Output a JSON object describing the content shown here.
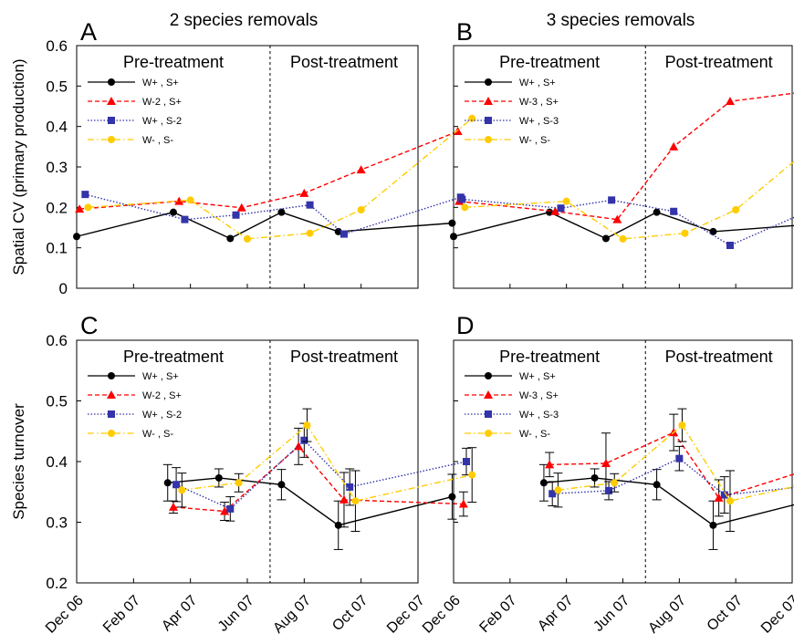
{
  "figure": {
    "column_titles": [
      "2 species removals",
      "3 species removals"
    ],
    "x_ticks": [
      "Dec 06",
      "Feb 07",
      "Apr 07",
      "Jun 07",
      "Aug 07",
      "Oct 07",
      "Dec 07"
    ],
    "phase_labels": {
      "pre": "Pre-treatment",
      "post": "Post-treatment"
    },
    "treatment_start": "May 07"
  },
  "chart_data": [
    {
      "panel": "A",
      "type": "line",
      "title": "2 species removals",
      "ylabel": "Spatial CV (primary production)",
      "ylim": [
        0,
        0.6
      ],
      "yticks": [
        "0",
        "0.1",
        "0.2",
        "0.3",
        "0.4",
        "0.5",
        "0.6"
      ],
      "x_labels": [
        "Dec 06",
        "Feb 07",
        "Apr 07",
        "Jun 07",
        "Aug 07",
        "Oct 07",
        "Dec 07"
      ],
      "series": [
        {
          "name": "W+ , S+",
          "color": "#000000",
          "style": "solid",
          "marker": "circle",
          "x": [
            0.0,
            1.7,
            2.7,
            3.6,
            4.6,
            6.6
          ],
          "y": [
            0.128,
            0.188,
            0.123,
            0.188,
            0.14,
            0.161
          ]
        },
        {
          "name": "W-2 , S+",
          "color": "#ff0000",
          "style": "dashed",
          "marker": "triangle",
          "x": [
            0.05,
            1.8,
            2.9,
            4.0,
            5.0,
            6.7
          ],
          "y": [
            0.196,
            0.215,
            0.199,
            0.235,
            0.293,
            0.388
          ]
        },
        {
          "name": "W+ , S-2",
          "color": "#3333aa",
          "style": "dotted",
          "marker": "square",
          "x": [
            0.15,
            1.9,
            2.8,
            4.1,
            4.7,
            6.75
          ],
          "y": [
            0.232,
            0.17,
            0.181,
            0.206,
            0.134,
            0.225
          ]
        },
        {
          "name": "W- , S-",
          "color": "#ffcc00",
          "style": "dashdot",
          "marker": "circle",
          "x": [
            0.2,
            2.0,
            3.0,
            4.1,
            5.0,
            6.95
          ],
          "y": [
            0.2,
            0.218,
            0.122,
            0.136,
            0.194,
            0.42
          ]
        }
      ]
    },
    {
      "panel": "B",
      "type": "line",
      "title": "3 species removals",
      "ylabel": "",
      "ylim": [
        0,
        0.6
      ],
      "x_labels": [
        "Dec 06",
        "Feb 07",
        "Apr 07",
        "Jun 07",
        "Aug 07",
        "Oct 07",
        "Dec 07"
      ],
      "series": [
        {
          "name": "W+ , S+",
          "color": "#000000",
          "style": "solid",
          "marker": "circle",
          "x": [
            0.0,
            1.7,
            2.7,
            3.6,
            4.6,
            6.6
          ],
          "y": [
            0.128,
            0.188,
            0.123,
            0.188,
            0.14,
            0.161
          ]
        },
        {
          "name": "W-3 , S+",
          "color": "#ff0000",
          "style": "dashed",
          "marker": "triangle",
          "x": [
            0.1,
            1.8,
            2.9,
            3.9,
            4.9,
            6.8
          ],
          "y": [
            0.215,
            0.19,
            0.17,
            0.35,
            0.462,
            0.496
          ]
        },
        {
          "name": "W+ , S-3",
          "color": "#3333aa",
          "style": "dotted",
          "marker": "square",
          "x": [
            0.15,
            1.9,
            2.8,
            3.9,
            4.9,
            6.75
          ],
          "y": [
            0.22,
            0.198,
            0.218,
            0.19,
            0.106,
            0.219
          ]
        },
        {
          "name": "W- , S-",
          "color": "#ffcc00",
          "style": "dashdot",
          "marker": "circle",
          "x": [
            0.2,
            2.0,
            3.0,
            4.1,
            5.0,
            6.95
          ],
          "y": [
            0.2,
            0.215,
            0.122,
            0.136,
            0.194,
            0.42
          ]
        }
      ]
    },
    {
      "panel": "C",
      "type": "line",
      "title": "",
      "ylabel": "Species turnover",
      "ylim": [
        0.2,
        0.6
      ],
      "yticks": [
        "0.2",
        "0.3",
        "0.4",
        "0.5",
        "0.6"
      ],
      "x_labels": [
        "Dec 06",
        "Feb 07",
        "Apr 07",
        "Jun 07",
        "Aug 07",
        "Oct 07",
        "Dec 07"
      ],
      "series": [
        {
          "name": "W+ , S+",
          "color": "#000000",
          "style": "solid",
          "marker": "circle",
          "x": [
            1.6,
            2.5,
            3.6,
            4.6,
            6.6
          ],
          "y": [
            0.365,
            0.373,
            0.362,
            0.295,
            0.342
          ],
          "err": [
            0.03,
            0.015,
            0.025,
            0.04,
            0.037
          ]
        },
        {
          "name": "W-2 , S+",
          "color": "#ff0000",
          "style": "dashed",
          "marker": "triangle",
          "x": [
            1.7,
            2.6,
            3.9,
            4.7,
            6.8
          ],
          "y": [
            0.325,
            0.318,
            0.425,
            0.337,
            0.33
          ],
          "err": [
            0.01,
            0.015,
            0.03,
            0.045,
            0.02
          ]
        },
        {
          "name": "W+ , S-2",
          "color": "#3333aa",
          "style": "dotted",
          "marker": "square",
          "x": [
            1.75,
            2.7,
            4.0,
            4.8,
            6.85
          ],
          "y": [
            0.362,
            0.322,
            0.435,
            0.358,
            0.4
          ],
          "err": [
            0.028,
            0.02,
            0.028,
            0.03,
            0.022
          ]
        },
        {
          "name": "W- , S-",
          "color": "#ffcc00",
          "style": "dashdot",
          "marker": "circle",
          "x": [
            1.85,
            2.85,
            4.05,
            4.9,
            6.95
          ],
          "y": [
            0.353,
            0.365,
            0.46,
            0.335,
            0.378
          ],
          "err": [
            0.028,
            0.015,
            0.027,
            0.05,
            0.045
          ]
        }
      ]
    },
    {
      "panel": "D",
      "type": "line",
      "title": "",
      "ylabel": "",
      "ylim": [
        0.2,
        0.6
      ],
      "x_labels": [
        "Dec 06",
        "Feb 07",
        "Apr 07",
        "Jun 07",
        "Aug 07",
        "Oct 07",
        "Dec 07"
      ],
      "series": [
        {
          "name": "W+ , S+",
          "color": "#000000",
          "style": "solid",
          "marker": "circle",
          "x": [
            1.6,
            2.5,
            3.6,
            4.6,
            6.6
          ],
          "y": [
            0.365,
            0.373,
            0.362,
            0.295,
            0.342
          ],
          "err": [
            0.03,
            0.015,
            0.025,
            0.04,
            0.037
          ]
        },
        {
          "name": "W-3 , S+",
          "color": "#ff0000",
          "style": "dashed",
          "marker": "triangle",
          "x": [
            1.7,
            2.7,
            3.9,
            4.7,
            6.8
          ],
          "y": [
            0.395,
            0.397,
            0.448,
            0.34,
            0.402
          ],
          "err": [
            0.02,
            0.05,
            0.03,
            0.03,
            0.028
          ]
        },
        {
          "name": "W+ , S-3",
          "color": "#3333aa",
          "style": "dotted",
          "marker": "square",
          "x": [
            1.75,
            2.75,
            4.0,
            4.8,
            6.85
          ],
          "y": [
            0.347,
            0.352,
            0.405,
            0.345,
            0.365
          ],
          "err": [
            0.02,
            0.015,
            0.02,
            0.03,
            0.015
          ]
        },
        {
          "name": "W- , S-",
          "color": "#ffcc00",
          "style": "dashdot",
          "marker": "circle",
          "x": [
            1.85,
            2.85,
            4.05,
            4.9,
            6.95
          ],
          "y": [
            0.353,
            0.365,
            0.46,
            0.335,
            0.378
          ],
          "err": [
            0.028,
            0.015,
            0.027,
            0.05,
            0.045
          ]
        }
      ]
    }
  ]
}
